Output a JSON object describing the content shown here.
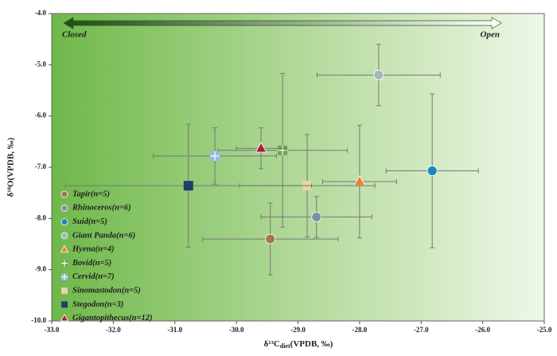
{
  "chart_data": {
    "type": "scatter",
    "x_label": [
      "δ¹³C",
      "diet",
      "(VPDB, ‰)"
    ],
    "y_label": "δ¹⁸O(VPDB, ‰)",
    "arrow_left_label": "Closed",
    "arrow_right_label": "Open",
    "xlim": [
      -33,
      -25
    ],
    "ylim": [
      -10,
      -4
    ],
    "xticks": [
      {
        "value": -33,
        "label": "-33.0"
      },
      {
        "value": -32,
        "label": "-32.0"
      },
      {
        "value": -31,
        "label": "-31.0"
      },
      {
        "value": -30,
        "label": "-30.0"
      },
      {
        "value": -29,
        "label": "-29.0"
      },
      {
        "value": -28,
        "label": "-28.0"
      },
      {
        "value": -27,
        "label": "-27.0"
      },
      {
        "value": -26,
        "label": "-26.0"
      },
      {
        "value": -25,
        "label": "-25.0"
      }
    ],
    "yticks": [
      {
        "value": -10,
        "label": "-10.0"
      },
      {
        "value": -9,
        "label": "-9.0"
      },
      {
        "value": -8,
        "label": "-8.0"
      },
      {
        "value": -7,
        "label": "-7.0"
      },
      {
        "value": -6,
        "label": "-6.0"
      },
      {
        "value": -5,
        "label": "-5.0"
      },
      {
        "value": -4,
        "label": "-4.0"
      }
    ],
    "series": [
      {
        "name": "Tapir(n=5)",
        "color": "#a0784a",
        "marker": "circle",
        "x": [
          -29.45
        ],
        "values": [
          -8.4
        ],
        "xerr": [
          1.1
        ],
        "yerr": [
          0.7
        ]
      },
      {
        "name": "Rhinoceros(n=6)",
        "color": "#7f8fa6",
        "marker": "circle",
        "x": [
          -28.7
        ],
        "values": [
          -7.97
        ],
        "xerr": [
          0.9
        ],
        "yerr": [
          0.4
        ]
      },
      {
        "name": "Suid(n=5)",
        "color": "#1f82c4",
        "marker": "circle",
        "x": [
          -26.82
        ],
        "values": [
          -7.07
        ],
        "xerr": [
          0.75
        ],
        "yerr": [
          1.5
        ]
      },
      {
        "name": "Giant Panda(n=6)",
        "color": "#a9b4bc",
        "marker": "circle",
        "x": [
          -27.69
        ],
        "values": [
          -5.2
        ],
        "xerr": [
          1.0
        ],
        "yerr": [
          0.6
        ]
      },
      {
        "name": "Hyena(n=4)",
        "color": "#f07f2a",
        "marker": "triangle",
        "x": [
          -28.0
        ],
        "values": [
          -7.28
        ],
        "xerr": [
          0.6
        ],
        "yerr": [
          1.1
        ]
      },
      {
        "name": "Bovid(n=5)",
        "color": "#6aa84f",
        "marker": "plus-square",
        "x": [
          -29.25
        ],
        "values": [
          -6.67
        ],
        "xerr": [
          1.05
        ],
        "yerr": [
          1.5
        ]
      },
      {
        "name": "Cervid(n=7)",
        "color": "#9ab5e6",
        "marker": "plus-square",
        "x": [
          -30.35
        ],
        "values": [
          -6.78
        ],
        "xerr": [
          1.0
        ],
        "yerr": [
          0.55
        ]
      },
      {
        "name": "Sinomastodon(n=5)",
        "color": "#e6d7a8",
        "marker": "square",
        "x": [
          -28.85
        ],
        "values": [
          -7.36
        ],
        "xerr": [
          1.1
        ],
        "yerr": [
          1.0
        ]
      },
      {
        "name": "Stegodon(n=3)",
        "color": "#1f3f6b",
        "marker": "square",
        "x": [
          -30.78
        ],
        "values": [
          -7.36
        ],
        "xerr": [
          2.0
        ],
        "yerr": [
          1.2
        ]
      },
      {
        "name": "Gigantopithecus(n=12)",
        "color": "#a32035",
        "marker": "triangle",
        "x": [
          -29.6
        ],
        "values": [
          -6.63
        ],
        "xerr": [
          0.4
        ],
        "yerr": [
          0.4
        ]
      }
    ]
  }
}
